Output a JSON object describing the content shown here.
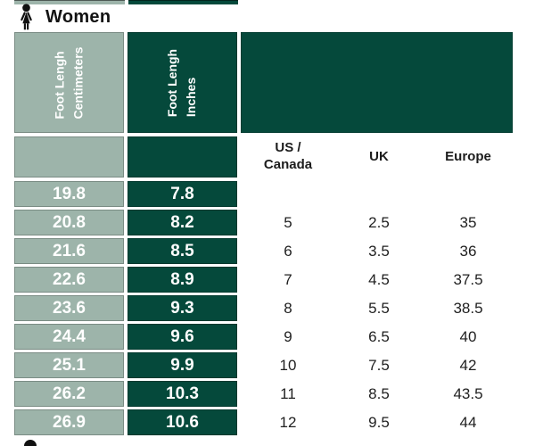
{
  "colors": {
    "light_green": "#9DB4AA",
    "dark_green": "#05493B"
  },
  "section": {
    "label": "Women"
  },
  "table": {
    "headers": {
      "cm": {
        "line1": "Foot Lengh",
        "line2": "Centimeters"
      },
      "inches": {
        "line1": "Foot Lengh",
        "line2": "Inches"
      }
    },
    "sub_headers": {
      "us_line1": "US /",
      "us_line2": "Canada",
      "uk": "UK",
      "europe": "Europe"
    },
    "rows": [
      {
        "cm": "19.8",
        "in": "7.8",
        "us": "",
        "uk": "",
        "eu": ""
      },
      {
        "cm": "20.8",
        "in": "8.2",
        "us": "5",
        "uk": "2.5",
        "eu": "35"
      },
      {
        "cm": "21.6",
        "in": "8.5",
        "us": "6",
        "uk": "3.5",
        "eu": "36"
      },
      {
        "cm": "22.6",
        "in": "8.9",
        "us": "7",
        "uk": "4.5",
        "eu": "37.5"
      },
      {
        "cm": "23.6",
        "in": "9.3",
        "us": "8",
        "uk": "5.5",
        "eu": "38.5"
      },
      {
        "cm": "24.4",
        "in": "9.6",
        "us": "9",
        "uk": "6.5",
        "eu": "40"
      },
      {
        "cm": "25.1",
        "in": "9.9",
        "us": "10",
        "uk": "7.5",
        "eu": "42"
      },
      {
        "cm": "26.2",
        "in": "10.3",
        "us": "11",
        "uk": "8.5",
        "eu": "43.5"
      },
      {
        "cm": "26.9",
        "in": "10.6",
        "us": "12",
        "uk": "9.5",
        "eu": "44"
      }
    ]
  },
  "chart_data": {
    "type": "table",
    "title": "Women",
    "columns": [
      "Foot Lengh Centimeters",
      "Foot Lengh Inches",
      "US / Canada",
      "UK",
      "Europe"
    ],
    "rows": [
      [
        "19.8",
        "7.8",
        "",
        "",
        ""
      ],
      [
        "20.8",
        "8.2",
        "5",
        "2.5",
        "35"
      ],
      [
        "21.6",
        "8.5",
        "6",
        "3.5",
        "36"
      ],
      [
        "22.6",
        "8.9",
        "7",
        "4.5",
        "37.5"
      ],
      [
        "23.6",
        "9.3",
        "8",
        "5.5",
        "38.5"
      ],
      [
        "24.4",
        "9.6",
        "9",
        "6.5",
        "40"
      ],
      [
        "25.1",
        "9.9",
        "10",
        "7.5",
        "42"
      ],
      [
        "26.2",
        "10.3",
        "11",
        "8.5",
        "43.5"
      ],
      [
        "26.9",
        "10.6",
        "12",
        "9.5",
        "44"
      ]
    ]
  }
}
